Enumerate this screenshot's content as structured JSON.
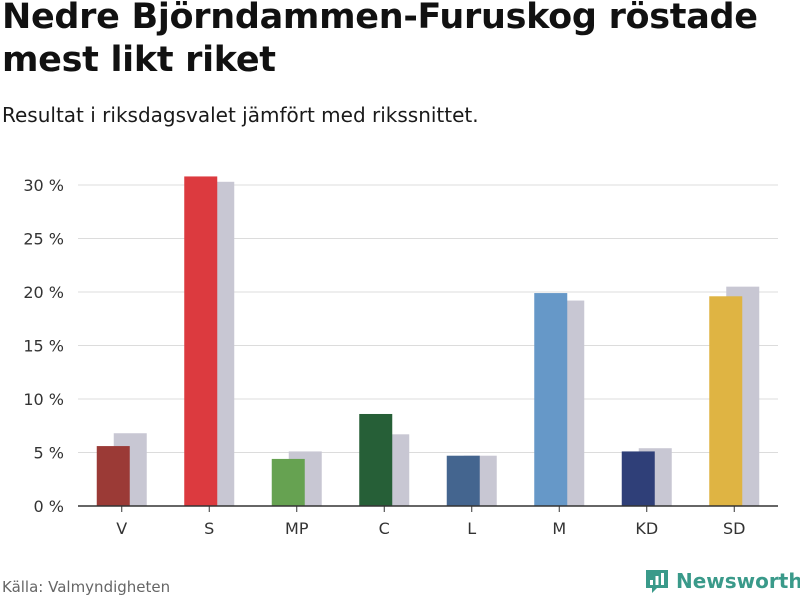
{
  "header": {
    "title": "Nedre Björndammen-Furuskog röstade mest likt riket",
    "subtitle": "Resultat i riksdagsvalet jämfört med rikssnittet."
  },
  "footer": {
    "source": "Källa: Valmyndigheten",
    "brand": "Newsworthy"
  },
  "colors": {
    "grid": "#dcdcdc",
    "national": "#c8c7d3",
    "axis": "#333333",
    "brand": "#3a9a8a"
  },
  "chart_data": {
    "type": "bar",
    "categories": [
      "V",
      "S",
      "MP",
      "C",
      "L",
      "M",
      "KD",
      "SD"
    ],
    "series": [
      {
        "values": [
          5.6,
          30.8,
          4.4,
          8.6,
          4.7,
          19.9,
          5.1,
          19.6
        ],
        "colors": [
          "#9b3a36",
          "#dc3a3f",
          "#66a251",
          "#265f37",
          "#44658f",
          "#6698c8",
          "#2f3f78",
          "#dfb443"
        ]
      },
      {
        "values": [
          6.8,
          30.3,
          5.1,
          6.7,
          4.7,
          19.2,
          5.4,
          20.5
        ],
        "color": "#c8c7d3"
      }
    ],
    "yticks": [
      "0 %",
      "5 %",
      "10 %",
      "15 %",
      "20 %",
      "25 %",
      "30 %"
    ],
    "ylim": [
      0,
      33
    ],
    "grid": true
  }
}
